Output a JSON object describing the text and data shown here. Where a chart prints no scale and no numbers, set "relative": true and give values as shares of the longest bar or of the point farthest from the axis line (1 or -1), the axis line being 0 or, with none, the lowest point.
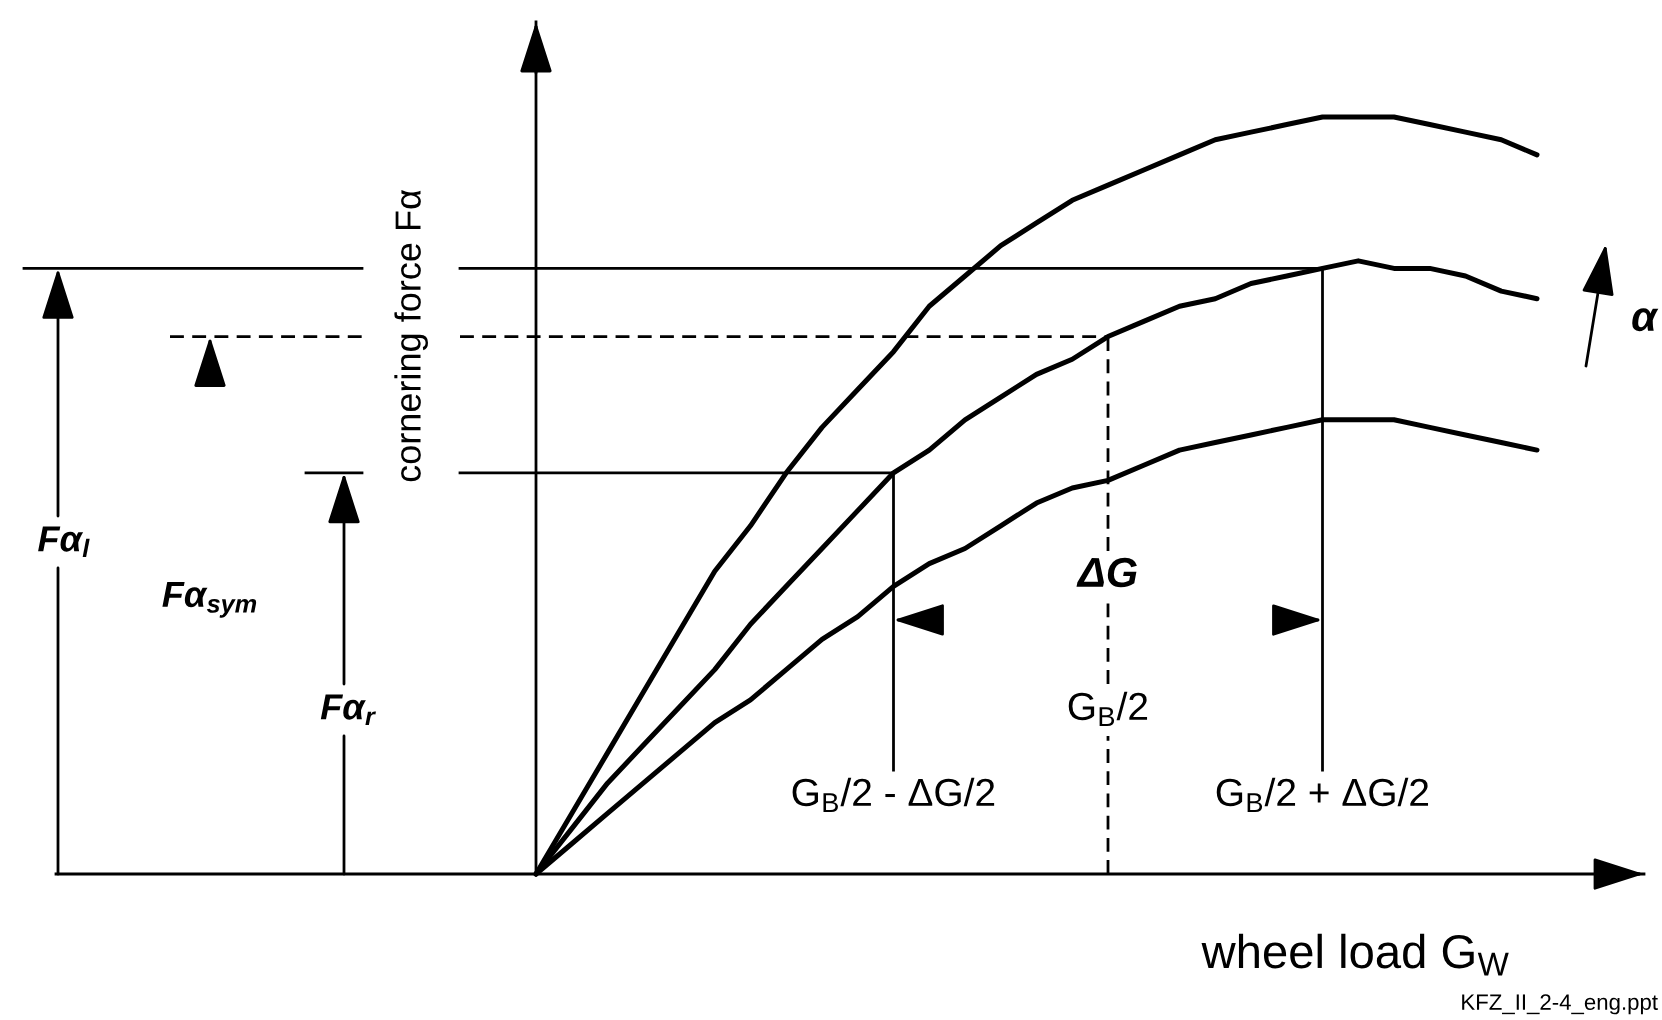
{
  "chart_data": {
    "type": "line",
    "relative": true,
    "ylabel": "cornering force Fα",
    "xlabel": "wheel load G$_{W}$",
    "categories": [
      null,
      null,
      null,
      null,
      null,
      null,
      null,
      null,
      null,
      null,
      "G$_{B}$/2 - ΔG/2",
      null,
      null,
      null,
      null,
      null,
      "G$_{B}$/2",
      null,
      null,
      null,
      null,
      null,
      "G$_{B}$/2 + ΔG/2",
      null,
      null,
      null,
      null,
      null,
      null
    ],
    "series": [
      {
        "color": "#000000",
        "values": [
          0,
          0.08,
          0.16,
          0.24,
          0.32,
          0.4,
          0.46,
          0.53,
          0.59,
          0.64,
          0.69,
          0.75,
          0.79,
          0.83,
          0.86,
          0.89,
          0.91,
          0.93,
          0.95,
          0.97,
          0.98,
          0.99,
          1.0,
          1.0,
          1.0,
          0.99,
          0.98,
          0.97,
          0.95
        ]
      },
      {
        "color": "#000000",
        "values": [
          0,
          0.06,
          0.12,
          0.17,
          0.22,
          0.27,
          0.33,
          0.38,
          0.43,
          0.48,
          0.53,
          0.56,
          0.6,
          0.63,
          0.66,
          0.68,
          0.71,
          0.73,
          0.75,
          0.76,
          0.78,
          0.79,
          0.8,
          0.81,
          0.8,
          0.8,
          0.79,
          0.77,
          0.76
        ]
      },
      {
        "color": "#000000",
        "values": [
          0,
          0.04,
          0.08,
          0.12,
          0.16,
          0.2,
          0.23,
          0.27,
          0.31,
          0.34,
          0.38,
          0.41,
          0.43,
          0.46,
          0.49,
          0.51,
          0.52,
          0.54,
          0.56,
          0.57,
          0.58,
          0.59,
          0.6,
          0.6,
          0.6,
          0.59,
          0.58,
          0.57,
          0.56
        ]
      }
    ],
    "ref_lines": [
      {
        "axis": "y",
        "value": 0.53
      },
      {
        "axis": "y",
        "value": 0.71,
        "line_style": "dashed"
      },
      {
        "axis": "y",
        "value": 0.8
      },
      {
        "axis": "x",
        "value": "G$_{B}$/2 - ΔG/2"
      },
      {
        "axis": "x",
        "value": "G$_{B}$/2",
        "line_style": "dashed"
      },
      {
        "axis": "x",
        "value": "G$_{B}$/2 + ΔG/2"
      }
    ],
    "annotations": [
      "Fα$_{l}$",
      "Fα$_{sym}$",
      "Fα$_{r}$",
      "ΔG",
      "α",
      "KFZ_II_2-4_eng.ppt"
    ]
  }
}
